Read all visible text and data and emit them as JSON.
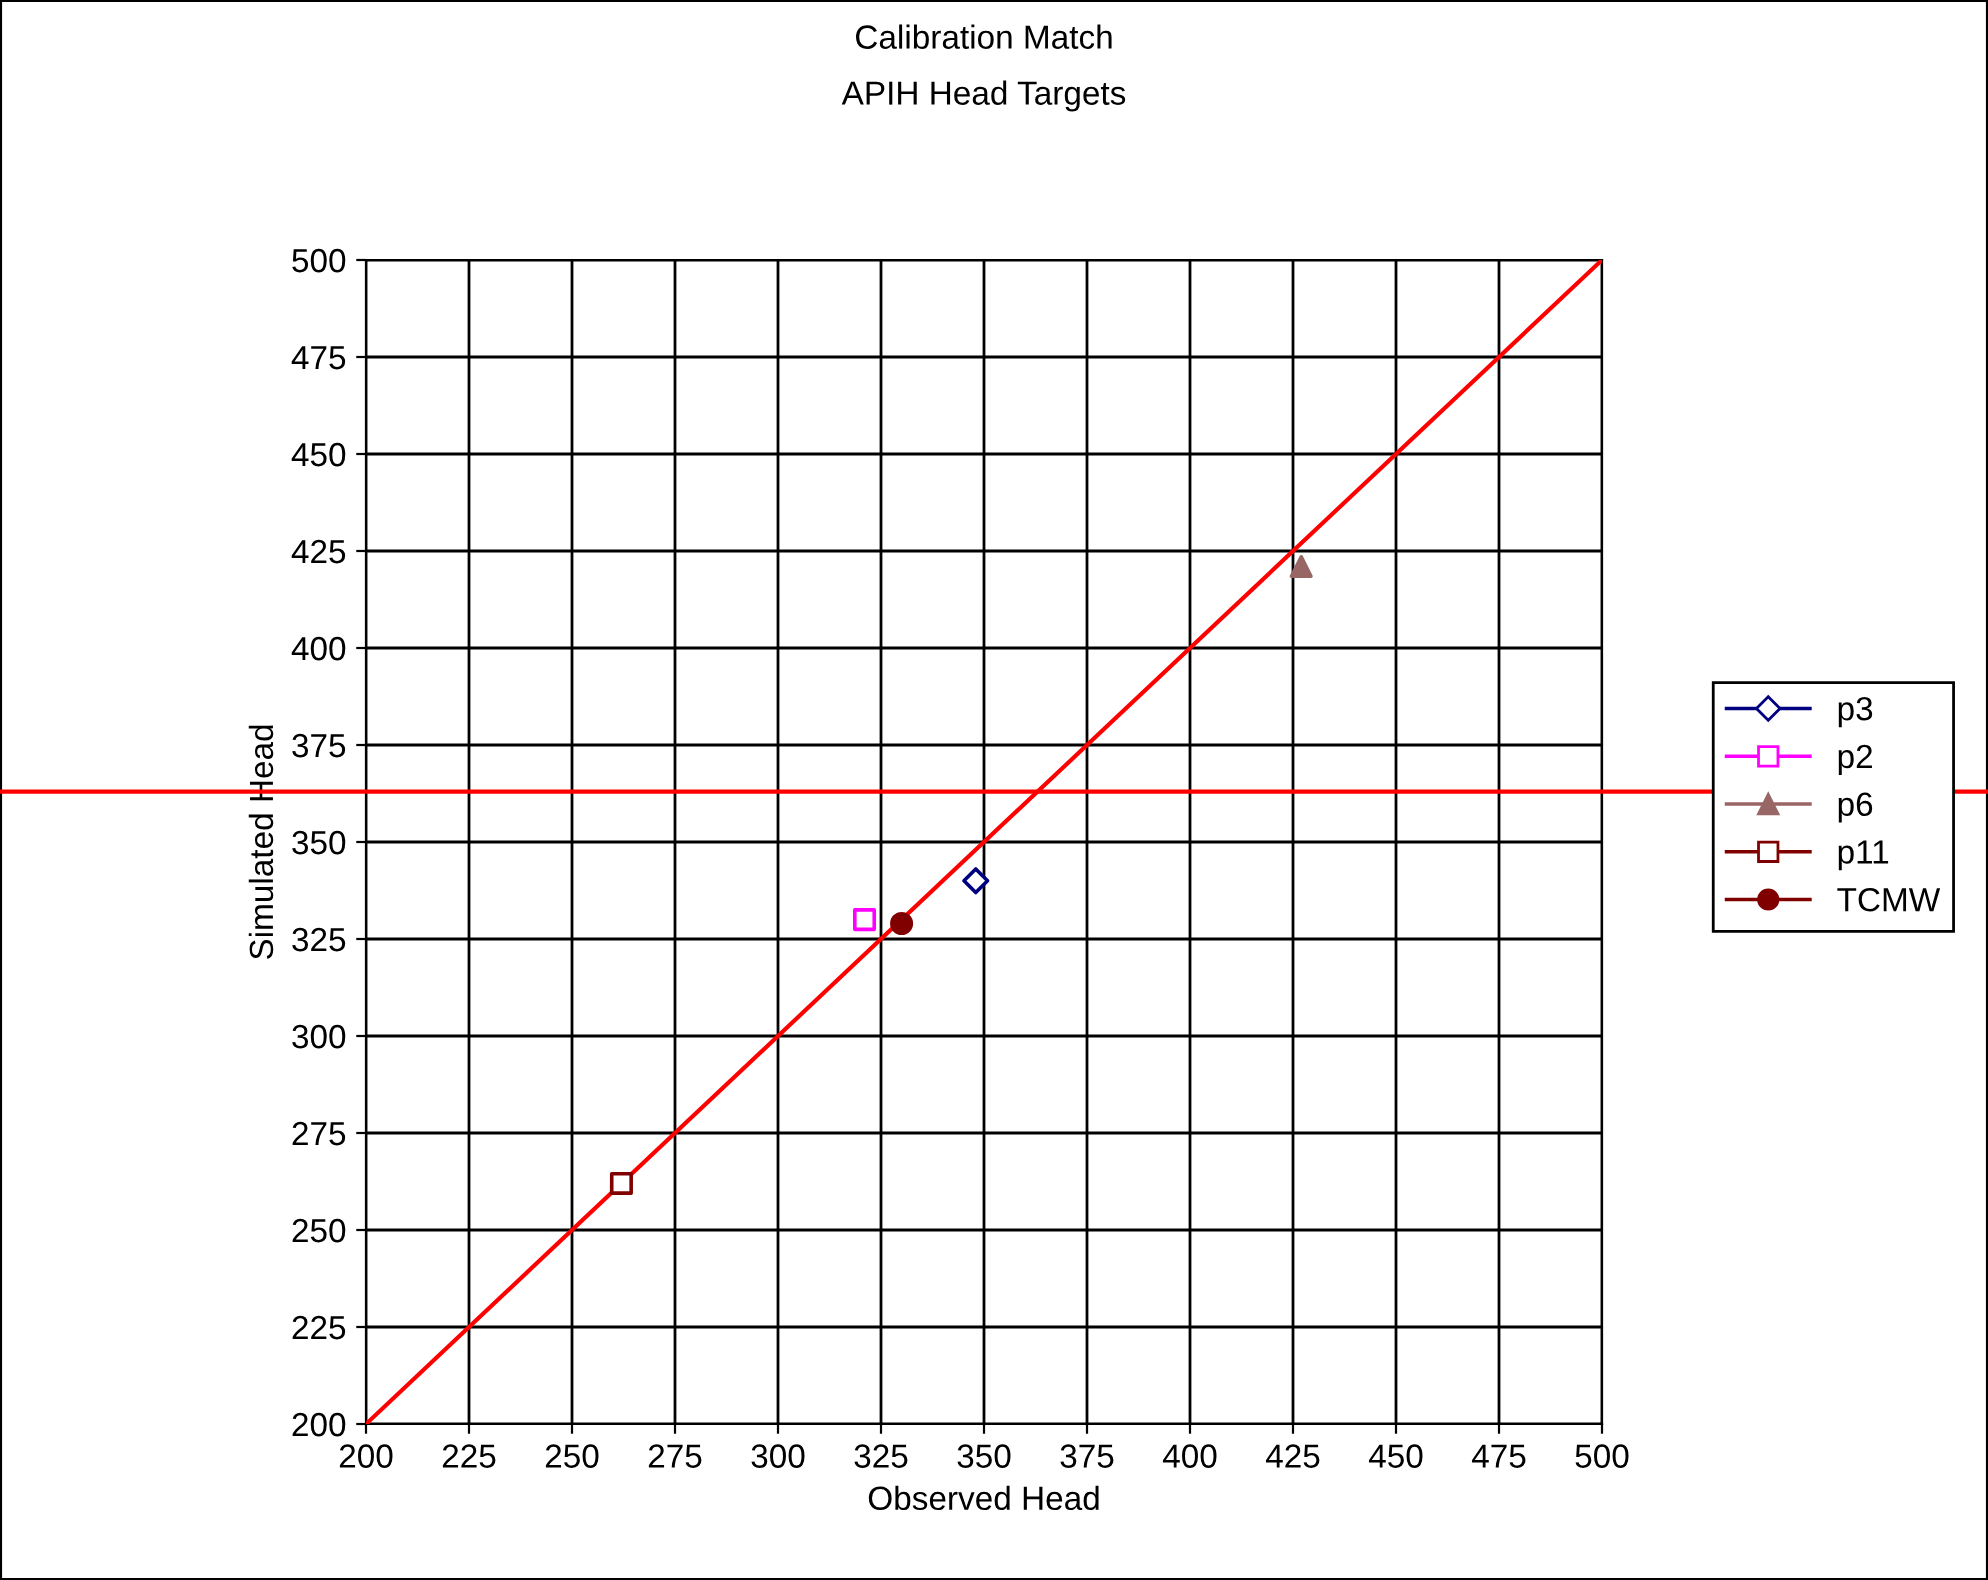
{
  "chart_data": {
    "type": "scatter",
    "title": "Calibration Match",
    "subtitle": "APIH Head Targets",
    "xlabel": "Observed Head",
    "ylabel": "Simulated Head",
    "xlim": [
      200,
      500
    ],
    "ylim": [
      200,
      500
    ],
    "xticks": [
      200,
      225,
      250,
      275,
      300,
      325,
      350,
      375,
      400,
      425,
      450,
      475,
      500
    ],
    "yticks": [
      200,
      225,
      250,
      275,
      300,
      325,
      350,
      375,
      400,
      425,
      450,
      475,
      500
    ],
    "grid": true,
    "legend": "right",
    "series": [
      {
        "name": "p3",
        "color": "#000080",
        "marker": "diamond",
        "x": [
          348
        ],
        "values": [
          340
        ]
      },
      {
        "name": "p2",
        "color": "#ff00ff",
        "marker": "square",
        "x": [
          321
        ],
        "values": [
          330
        ]
      },
      {
        "name": "p6",
        "color": "#996666",
        "marker": "triangle",
        "x": [
          427
        ],
        "values": [
          421
        ]
      },
      {
        "name": "p11",
        "color": "#800000",
        "marker": "square",
        "x": [
          262
        ],
        "values": [
          262
        ]
      },
      {
        "name": "TCMW",
        "color": "#800000",
        "marker": "circle",
        "x": [
          330
        ],
        "values": [
          329
        ]
      },
      {
        "type": "line",
        "color": "#ff0000",
        "marker": "none",
        "x": [
          200,
          500
        ],
        "values": [
          200,
          500
        ]
      }
    ],
    "ref_lines": [
      {
        "axis": "y",
        "value": 363,
        "color": "#ff0000"
      }
    ]
  }
}
